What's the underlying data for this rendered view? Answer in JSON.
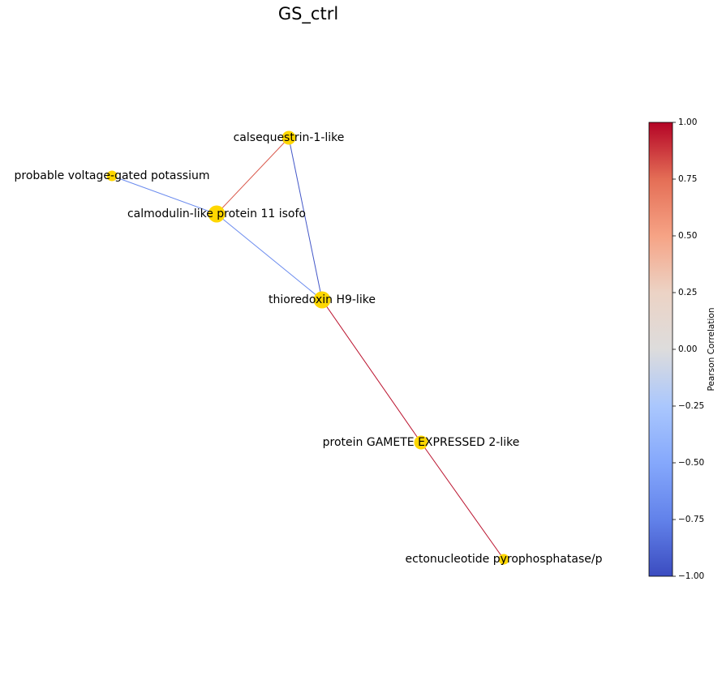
{
  "title": "GS_ctrl",
  "node_color": "#FFD700",
  "nodes": [
    {
      "id": "calsequestrin",
      "label": "calsequestrin-1-like",
      "degree": 2
    },
    {
      "id": "potassium",
      "label": "probable voltage-gated potassium",
      "degree": 1
    },
    {
      "id": "calmodulin",
      "label": "calmodulin-like protein 11 isofo",
      "degree": 3
    },
    {
      "id": "thioredoxin",
      "label": "thioredoxin H9-like",
      "degree": 3
    },
    {
      "id": "gamete",
      "label": "protein GAMETE EXPRESSED 2-like",
      "degree": 2
    },
    {
      "id": "ectonucleotide",
      "label": "ectonucleotide pyrophosphatase/p",
      "degree": 1
    }
  ],
  "edges": [
    {
      "source": "calsequestrin",
      "target": "calmodulin",
      "correlation": 0.8
    },
    {
      "source": "calsequestrin",
      "target": "thioredoxin",
      "correlation": -0.95
    },
    {
      "source": "potassium",
      "target": "calmodulin",
      "correlation": -0.7
    },
    {
      "source": "calmodulin",
      "target": "thioredoxin",
      "correlation": -0.7
    },
    {
      "source": "thioredoxin",
      "target": "gamete",
      "correlation": 0.97
    },
    {
      "source": "gamete",
      "target": "ectonucleotide",
      "correlation": 0.97
    }
  ],
  "colorbar": {
    "label": "Pearson Correlation",
    "colormap": "coolwarm",
    "min": -1.0,
    "max": 1.0,
    "ticks": [
      {
        "value": 1.0,
        "label": "1.00"
      },
      {
        "value": 0.75,
        "label": "0.75"
      },
      {
        "value": 0.5,
        "label": "0.50"
      },
      {
        "value": 0.25,
        "label": "0.25"
      },
      {
        "value": 0.0,
        "label": "0.00"
      },
      {
        "value": -0.25,
        "label": "−0.25"
      },
      {
        "value": -0.5,
        "label": "−0.50"
      },
      {
        "value": -0.75,
        "label": "−0.75"
      },
      {
        "value": -1.0,
        "label": "−1.00"
      }
    ],
    "stops": [
      {
        "value": 1.0,
        "color": "#b40426"
      },
      {
        "value": 0.75,
        "color": "#e46e56"
      },
      {
        "value": 0.5,
        "color": "#f6a385"
      },
      {
        "value": 0.25,
        "color": "#ecd3c5"
      },
      {
        "value": 0.0,
        "color": "#dddcdc"
      },
      {
        "value": -0.25,
        "color": "#aac7fd"
      },
      {
        "value": -0.5,
        "color": "#85a8fc"
      },
      {
        "value": -0.75,
        "color": "#6282ea"
      },
      {
        "value": -1.0,
        "color": "#3b4cc0"
      }
    ]
  }
}
